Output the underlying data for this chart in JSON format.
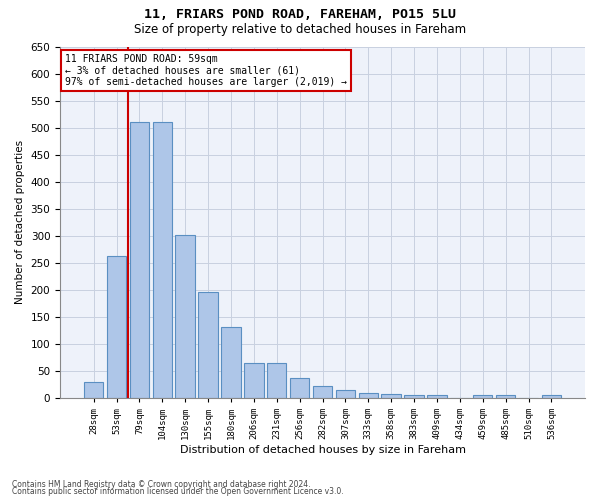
{
  "title_line1": "11, FRIARS POND ROAD, FAREHAM, PO15 5LU",
  "title_line2": "Size of property relative to detached houses in Fareham",
  "xlabel": "Distribution of detached houses by size in Fareham",
  "ylabel": "Number of detached properties",
  "footnote1": "Contains HM Land Registry data © Crown copyright and database right 2024.",
  "footnote2": "Contains public sector information licensed under the Open Government Licence v3.0.",
  "annotation_line1": "11 FRIARS POND ROAD: 59sqm",
  "annotation_line2": "← 3% of detached houses are smaller (61)",
  "annotation_line3": "97% of semi-detached houses are larger (2,019) →",
  "bar_labels": [
    "28sqm",
    "53sqm",
    "79sqm",
    "104sqm",
    "130sqm",
    "155sqm",
    "180sqm",
    "206sqm",
    "231sqm",
    "256sqm",
    "282sqm",
    "307sqm",
    "333sqm",
    "358sqm",
    "383sqm",
    "409sqm",
    "434sqm",
    "459sqm",
    "485sqm",
    "510sqm",
    "536sqm"
  ],
  "bar_values": [
    30,
    262,
    511,
    510,
    302,
    196,
    132,
    65,
    65,
    37,
    22,
    16,
    10,
    8,
    5,
    5,
    0,
    5,
    5,
    0,
    5
  ],
  "bar_color": "#aec6e8",
  "bar_edge_color": "#5a8fc2",
  "marker_color": "#cc0000",
  "ylim": [
    0,
    650
  ],
  "yticks": [
    0,
    50,
    100,
    150,
    200,
    250,
    300,
    350,
    400,
    450,
    500,
    550,
    600,
    650
  ],
  "grid_color": "#c8d0e0",
  "bg_color": "#eef2fa",
  "annotation_box_color": "#cc0000"
}
